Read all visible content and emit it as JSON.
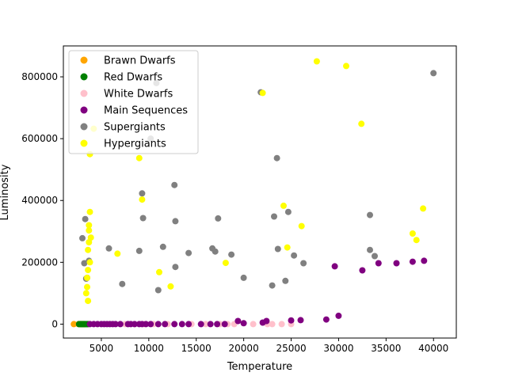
{
  "chart_data": {
    "type": "scatter",
    "title": "",
    "xlabel": "Temperature",
    "ylabel": "Luminosity",
    "xlim": [
      1000,
      42400
    ],
    "ylim": [
      -45000,
      900000
    ],
    "xticks": [
      5000,
      10000,
      15000,
      20000,
      25000,
      30000,
      35000,
      40000
    ],
    "xtick_labels": [
      "5000",
      "10000",
      "15000",
      "20000",
      "25000",
      "30000",
      "35000",
      "40000"
    ],
    "yticks": [
      0,
      200000,
      400000,
      600000,
      800000
    ],
    "ytick_labels": [
      "0",
      "200000",
      "400000",
      "600000",
      "800000"
    ],
    "grid": false,
    "legend_position": "top-left",
    "series": [
      {
        "name": "Brawn Dwarfs",
        "color": "#FFA500",
        "points": [
          [
            2100,
            0
          ],
          [
            2600,
            0
          ],
          [
            2700,
            0
          ],
          [
            2800,
            0
          ],
          [
            2900,
            0
          ],
          [
            3000,
            0
          ],
          [
            3100,
            0
          ],
          [
            3200,
            0
          ]
        ]
      },
      {
        "name": "Red Dwarfs",
        "color": "#008000",
        "points": [
          [
            2650,
            0
          ],
          [
            2800,
            0
          ],
          [
            2900,
            0
          ],
          [
            3000,
            0
          ],
          [
            3100,
            0
          ],
          [
            3200,
            0
          ],
          [
            3300,
            0
          ],
          [
            3400,
            0
          ],
          [
            3500,
            0
          ],
          [
            3600,
            0
          ]
        ]
      },
      {
        "name": "White Dwarfs",
        "color": "#FFC0CB",
        "points": [
          [
            7500,
            0
          ],
          [
            8500,
            0
          ],
          [
            9500,
            0
          ],
          [
            10500,
            0
          ],
          [
            12000,
            0
          ],
          [
            14500,
            0
          ],
          [
            16000,
            0
          ],
          [
            17500,
            0
          ],
          [
            18300,
            0
          ],
          [
            19000,
            0
          ],
          [
            21000,
            0
          ],
          [
            22500,
            0
          ],
          [
            23000,
            0
          ],
          [
            24000,
            0
          ],
          [
            25000,
            0
          ]
        ]
      },
      {
        "name": "Main Sequences",
        "color": "#800080",
        "points": [
          [
            3800,
            0
          ],
          [
            4200,
            0
          ],
          [
            4600,
            0
          ],
          [
            5000,
            0
          ],
          [
            5300,
            0
          ],
          [
            5600,
            0
          ],
          [
            5900,
            0
          ],
          [
            6200,
            0
          ],
          [
            6500,
            0
          ],
          [
            7000,
            0
          ],
          [
            7800,
            0
          ],
          [
            8100,
            0
          ],
          [
            8500,
            0
          ],
          [
            9000,
            0
          ],
          [
            9300,
            0
          ],
          [
            9700,
            0
          ],
          [
            10200,
            0
          ],
          [
            11000,
            0
          ],
          [
            11700,
            0
          ],
          [
            12700,
            0
          ],
          [
            13500,
            0
          ],
          [
            14200,
            0
          ],
          [
            15500,
            0
          ],
          [
            16500,
            0
          ],
          [
            17200,
            0
          ],
          [
            18000,
            0
          ],
          [
            19400,
            10000
          ],
          [
            20000,
            3000
          ],
          [
            22000,
            5000
          ],
          [
            22400,
            10000
          ],
          [
            25000,
            12000
          ],
          [
            26000,
            13000
          ],
          [
            28700,
            15000
          ],
          [
            30000,
            27000
          ],
          [
            29600,
            187000
          ],
          [
            32500,
            174000
          ],
          [
            34200,
            197000
          ],
          [
            36100,
            197000
          ],
          [
            37800,
            202000
          ],
          [
            39000,
            205000
          ]
        ]
      },
      {
        "name": "Supergiants",
        "color": "#808080",
        "points": [
          [
            3000,
            278000
          ],
          [
            3300,
            340000
          ],
          [
            3200,
            197000
          ],
          [
            3400,
            147000
          ],
          [
            3500,
            150000
          ],
          [
            3700,
            205000
          ],
          [
            5800,
            245000
          ],
          [
            7200,
            130000
          ],
          [
            9000,
            237000
          ],
          [
            9300,
            423000
          ],
          [
            9400,
            343000
          ],
          [
            10200,
            600000
          ],
          [
            10800,
            780000
          ],
          [
            11000,
            110000
          ],
          [
            11500,
            250000
          ],
          [
            12700,
            450000
          ],
          [
            12800,
            333000
          ],
          [
            12800,
            185000
          ],
          [
            14200,
            230000
          ],
          [
            16700,
            245000
          ],
          [
            17000,
            235000
          ],
          [
            17300,
            342000
          ],
          [
            18700,
            225000
          ],
          [
            20000,
            150000
          ],
          [
            21800,
            750000
          ],
          [
            23000,
            125000
          ],
          [
            23200,
            348000
          ],
          [
            23500,
            537000
          ],
          [
            23600,
            243000
          ],
          [
            24400,
            140000
          ],
          [
            24700,
            363000
          ],
          [
            25300,
            222000
          ],
          [
            26300,
            197000
          ],
          [
            33300,
            353000
          ],
          [
            33300,
            240000
          ],
          [
            33800,
            220000
          ],
          [
            40000,
            812000
          ]
        ]
      },
      {
        "name": "Hypergiants",
        "color": "#FFFF00",
        "points": [
          [
            3400,
            100000
          ],
          [
            3500,
            120000
          ],
          [
            3500,
            150000
          ],
          [
            3600,
            175000
          ],
          [
            3600,
            240000
          ],
          [
            3700,
            320000
          ],
          [
            3700,
            303000
          ],
          [
            3800,
            363000
          ],
          [
            3800,
            550000
          ],
          [
            3800,
            200000
          ],
          [
            3900,
            280000
          ],
          [
            3600,
            75000
          ],
          [
            3700,
            265000
          ],
          [
            4200,
            632000
          ],
          [
            6700,
            228000
          ],
          [
            9000,
            537000
          ],
          [
            9300,
            403000
          ],
          [
            11100,
            168000
          ],
          [
            12300,
            122000
          ],
          [
            18100,
            198000
          ],
          [
            22000,
            748000
          ],
          [
            24200,
            383000
          ],
          [
            24600,
            248000
          ],
          [
            26100,
            317000
          ],
          [
            27700,
            850000
          ],
          [
            30800,
            835000
          ],
          [
            32400,
            648000
          ],
          [
            37800,
            293000
          ],
          [
            38200,
            272000
          ],
          [
            38900,
            374000
          ]
        ]
      }
    ]
  }
}
